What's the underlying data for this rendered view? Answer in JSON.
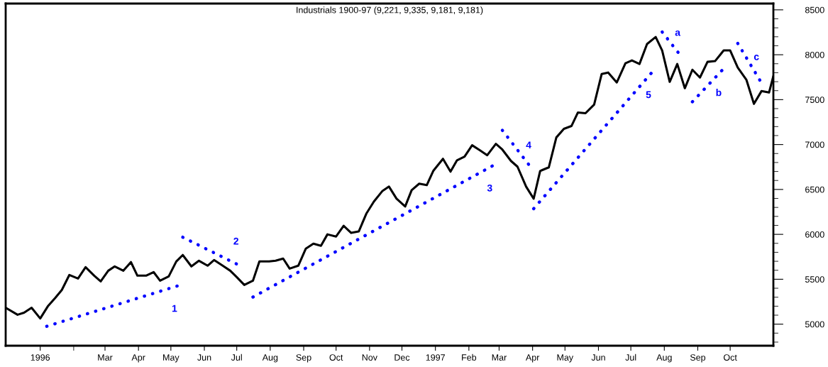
{
  "chart_data": {
    "type": "line",
    "title": "Industrials 1900-97 (9,221, 9,335, 9,181, 9,181)",
    "x": [
      "1995-12-08",
      "1995-12-19",
      "1995-12-25",
      "1996-01-01",
      "1996-01-09",
      "1996-01-16",
      "1996-01-23",
      "1996-01-29",
      "1996-02-05",
      "1996-02-13",
      "1996-02-20",
      "1996-02-28",
      "1996-03-05",
      "1996-03-12",
      "1996-03-18",
      "1996-03-26",
      "1996-04-02",
      "1996-04-08",
      "1996-04-16",
      "1996-04-23",
      "1996-04-29",
      "1996-05-07",
      "1996-05-14",
      "1996-05-20",
      "1996-05-28",
      "1996-06-04",
      "1996-06-12",
      "1996-06-18",
      "1996-06-26",
      "1996-07-03",
      "1996-07-09",
      "1996-07-16",
      "1996-07-24",
      "1996-07-30",
      "1996-08-08",
      "1996-08-14",
      "1996-08-21",
      "1996-08-27",
      "1996-09-04",
      "1996-09-11",
      "1996-09-18",
      "1996-09-25",
      "1996-10-01",
      "1996-10-09",
      "1996-10-16",
      "1996-10-23",
      "1996-10-30",
      "1996-11-06",
      "1996-11-13",
      "1996-11-21",
      "1996-11-27",
      "1996-12-04",
      "1996-12-12",
      "1996-12-18",
      "1996-12-25",
      "1997-01-01",
      "1997-01-07",
      "1997-01-16",
      "1997-01-23",
      "1997-01-29",
      "1997-02-05",
      "1997-02-12",
      "1997-02-19",
      "1997-02-26",
      "1997-03-06",
      "1997-03-12",
      "1997-03-20",
      "1997-03-26",
      "1997-04-03",
      "1997-04-10",
      "1997-04-16",
      "1997-04-24",
      "1997-05-01",
      "1997-05-08",
      "1997-05-15",
      "1997-05-21",
      "1997-05-28",
      "1997-06-05",
      "1997-06-12",
      "1997-06-18",
      "1997-06-26",
      "1997-07-04",
      "1997-07-10",
      "1997-07-17",
      "1997-07-24",
      "1997-08-01",
      "1997-08-07",
      "1997-08-14",
      "1997-08-21",
      "1997-08-28",
      "1997-09-04",
      "1997-09-11",
      "1997-09-18",
      "1997-09-25",
      "1997-10-03",
      "1997-10-09",
      "1997-10-16",
      "1997-10-24",
      "1997-10-31",
      "1997-11-07",
      "1997-11-14",
      "1997-11-18"
    ],
    "series": [
      {
        "color": "#000000",
        "values": [
          5183,
          5105,
          5127,
          5183,
          5063,
          5198,
          5294,
          5381,
          5548,
          5508,
          5635,
          5540,
          5476,
          5595,
          5643,
          5595,
          5691,
          5540,
          5540,
          5580,
          5484,
          5532,
          5698,
          5770,
          5643,
          5706,
          5651,
          5714,
          5651,
          5595,
          5524,
          5437,
          5484,
          5698,
          5698,
          5706,
          5730,
          5619,
          5651,
          5841,
          5897,
          5873,
          6000,
          5976,
          6095,
          6016,
          6032,
          6230,
          6365,
          6484,
          6532,
          6397,
          6310,
          6492,
          6564,
          6548,
          6706,
          6841,
          6698,
          6825,
          6865,
          6992,
          6937,
          6881,
          7008,
          6944,
          6817,
          6754,
          6532,
          6397,
          6706,
          6746,
          7079,
          7175,
          7206,
          7357,
          7349,
          7445,
          7786,
          7802,
          7691,
          7905,
          7937,
          7897,
          8119,
          8198,
          8048,
          7698,
          7897,
          7627,
          7833,
          7746,
          7921,
          7929,
          8048,
          8048,
          7857,
          7722,
          7453,
          7595,
          7579,
          7762
        ]
      },
      {
        "name": "1",
        "color": "#0000ff",
        "x": [
          "1996-01-15",
          "1996-05-16"
        ],
        "values": [
          4976,
          5429
        ],
        "line_style": "dotted"
      },
      {
        "name": "2",
        "color": "#0000ff",
        "x": [
          "1996-05-20",
          "1996-07-12"
        ],
        "values": [
          5968,
          5651
        ],
        "line_style": "dotted"
      },
      {
        "name": "3",
        "color": "#0000ff",
        "x": [
          "1996-07-24",
          "1997-03-04"
        ],
        "values": [
          5302,
          6770
        ],
        "line_style": "dotted"
      },
      {
        "name": "4",
        "color": "#0000ff",
        "x": [
          "1997-03-12",
          "1997-04-09"
        ],
        "values": [
          7159,
          6722
        ],
        "line_style": "dotted"
      },
      {
        "name": "5",
        "color": "#0000ff",
        "x": [
          "1997-04-10",
          "1997-07-29"
        ],
        "values": [
          6286,
          7810
        ],
        "line_style": "dotted"
      },
      {
        "name": "a",
        "color": "#0000ff",
        "x": [
          "1997-08-07",
          "1997-08-25"
        ],
        "values": [
          8254,
          7976
        ],
        "line_style": "dotted"
      },
      {
        "name": "b",
        "color": "#0000ff",
        "x": [
          "1997-09-04",
          "1997-10-02"
        ],
        "values": [
          7476,
          7833
        ],
        "line_style": "dotted"
      },
      {
        "name": "c",
        "color": "#0000ff",
        "x": [
          "1997-10-16",
          "1997-11-06"
        ],
        "values": [
          8127,
          7706
        ],
        "line_style": "dotted"
      }
    ],
    "xlim": [
      "1995-12-08",
      "1997-11-18"
    ],
    "xticks": [
      {
        "value": "1996-01-09",
        "label": "1996"
      },
      {
        "value": "1996-02-09",
        "label": null
      },
      {
        "value": "1996-03-09",
        "label": "Mar"
      },
      {
        "value": "1996-04-09",
        "label": "Apr"
      },
      {
        "value": "1996-05-09",
        "label": "May"
      },
      {
        "value": "1996-06-09",
        "label": "Jun"
      },
      {
        "value": "1996-07-09",
        "label": "Jul"
      },
      {
        "value": "1996-08-09",
        "label": "Aug"
      },
      {
        "value": "1996-09-09",
        "label": "Sep"
      },
      {
        "value": "1996-10-09",
        "label": "Oct"
      },
      {
        "value": "1996-11-09",
        "label": "Nov"
      },
      {
        "value": "1996-12-09",
        "label": "Dec"
      },
      {
        "value": "1997-01-09",
        "label": "1997"
      },
      {
        "value": "1997-02-09",
        "label": "Feb"
      },
      {
        "value": "1997-03-09",
        "label": "Mar"
      },
      {
        "value": "1997-04-09",
        "label": "Apr"
      },
      {
        "value": "1997-05-09",
        "label": "May"
      },
      {
        "value": "1997-06-09",
        "label": "Jun"
      },
      {
        "value": "1997-07-09",
        "label": "Jul"
      },
      {
        "value": "1997-08-09",
        "label": "Aug"
      },
      {
        "value": "1997-09-09",
        "label": "Sep"
      },
      {
        "value": "1997-10-09",
        "label": "Oct"
      }
    ],
    "ylim": [
      4760,
      8570
    ],
    "yticks": [
      {
        "value": 4800,
        "label": null
      },
      {
        "value": 4900,
        "label": null
      },
      5000,
      {
        "value": 5100,
        "label": null
      },
      {
        "value": 5200,
        "label": null
      },
      {
        "value": 5300,
        "label": null
      },
      {
        "value": 5400,
        "label": null
      },
      5500,
      {
        "value": 5600,
        "label": null
      },
      {
        "value": 5700,
        "label": null
      },
      {
        "value": 5800,
        "label": null
      },
      {
        "value": 5900,
        "label": null
      },
      6000,
      {
        "value": 6100,
        "label": null
      },
      {
        "value": 6200,
        "label": null
      },
      {
        "value": 6300,
        "label": null
      },
      {
        "value": 6400,
        "label": null
      },
      6500,
      {
        "value": 6600,
        "label": null
      },
      {
        "value": 6700,
        "label": null
      },
      {
        "value": 6800,
        "label": null
      },
      {
        "value": 6900,
        "label": null
      },
      7000,
      {
        "value": 7100,
        "label": null
      },
      {
        "value": 7200,
        "label": null
      },
      {
        "value": 7300,
        "label": null
      },
      {
        "value": 7400,
        "label": null
      },
      7500,
      {
        "value": 7600,
        "label": null
      },
      {
        "value": 7700,
        "label": null
      },
      {
        "value": 7800,
        "label": null
      },
      {
        "value": 7900,
        "label": null
      },
      8000,
      {
        "value": 8100,
        "label": null
      },
      {
        "value": 8200,
        "label": null
      },
      {
        "value": 8300,
        "label": null
      },
      {
        "value": 8400,
        "label": null
      },
      8500
    ],
    "grid": false,
    "marker": "none",
    "line_style": "solid"
  }
}
